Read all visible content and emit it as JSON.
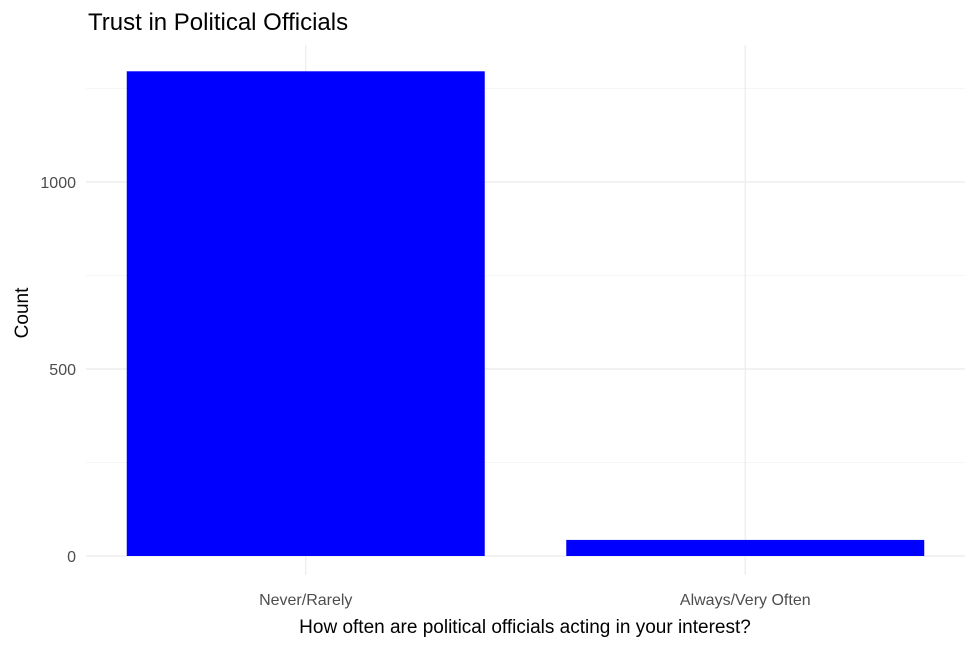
{
  "chart_data": {
    "type": "bar",
    "title": "Trust in Political Officials",
    "xlabel": "How often are political officials acting in your interest?",
    "ylabel": "Count",
    "categories": [
      "Never/Rarely",
      "Always/Very Often"
    ],
    "values": [
      1296,
      43
    ],
    "ylim": [
      0,
      1350
    ],
    "yticks": [
      0,
      500,
      1000
    ],
    "ytick_labels": [
      "0",
      "500",
      "1000"
    ],
    "bar_color": "#0000ff",
    "grid": true,
    "legend": "none"
  }
}
